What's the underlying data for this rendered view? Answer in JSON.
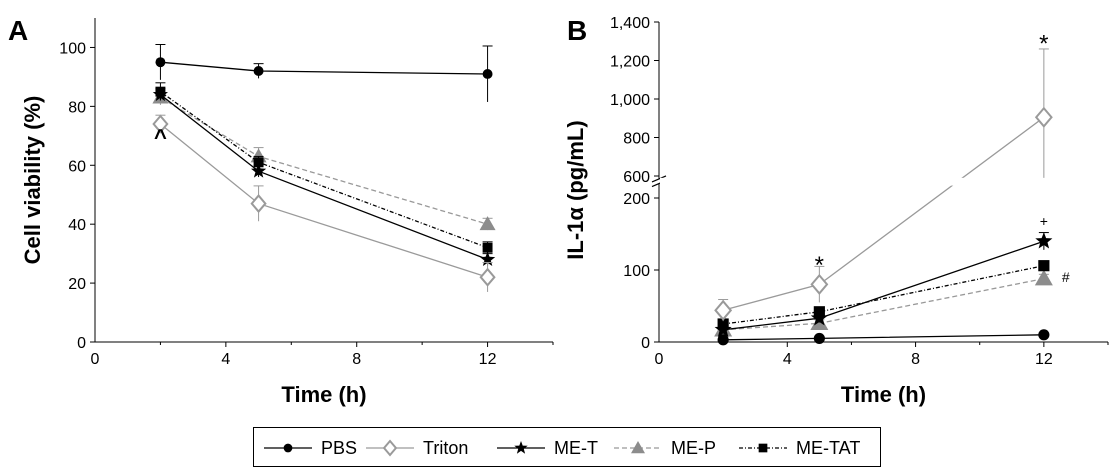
{
  "chart_data": [
    {
      "panel": "A",
      "type": "line",
      "xlabel": "Time (h)",
      "ylabel": "Cell viability (%)",
      "xlim": [
        0,
        14
      ],
      "ylim": [
        0,
        100
      ],
      "xticks": [
        "0",
        "4",
        "8",
        "12"
      ],
      "yticks": [
        "0",
        "20",
        "40",
        "60",
        "80",
        "100"
      ],
      "x": [
        2,
        5,
        12
      ],
      "series": [
        {
          "name": "PBS",
          "values": [
            95,
            92,
            91
          ],
          "errors": [
            6,
            2.5,
            9.5
          ]
        },
        {
          "name": "Triton",
          "values": [
            74,
            47,
            22
          ],
          "errors": [
            3,
            6,
            5
          ]
        },
        {
          "name": "ME-T",
          "values": [
            84,
            58,
            28
          ],
          "errors": [
            2,
            2,
            2
          ]
        },
        {
          "name": "ME-P",
          "values": [
            83,
            63,
            40
          ],
          "errors": [
            2.5,
            3,
            2
          ]
        },
        {
          "name": "ME-TAT",
          "values": [
            85,
            61,
            32
          ],
          "errors": [
            3,
            2,
            2
          ]
        }
      ],
      "annotations": [
        {
          "text": "^",
          "x": 2,
          "y": 67
        }
      ]
    },
    {
      "panel": "B",
      "type": "line",
      "xlabel": "Time (h)",
      "ylabel": "IL-1α (pg/mL)",
      "xlim": [
        0,
        14
      ],
      "ylim_lower": [
        0,
        220
      ],
      "ylim_upper": [
        580,
        1400
      ],
      "xticks": [
        "0",
        "4",
        "8",
        "12"
      ],
      "yticks_lower": [
        "0",
        "100",
        "200"
      ],
      "yticks_upper": [
        "600",
        "800",
        "1,000",
        "1,200",
        "1,400"
      ],
      "x": [
        2,
        5,
        12
      ],
      "series": [
        {
          "name": "PBS",
          "values": [
            3,
            5,
            10
          ],
          "errors": [
            0,
            0,
            0
          ]
        },
        {
          "name": "Triton",
          "values": [
            44,
            80,
            905
          ],
          "errors": [
            15,
            25,
            355
          ]
        },
        {
          "name": "ME-T",
          "values": [
            17,
            33,
            140
          ],
          "errors": [
            4,
            6,
            12
          ]
        },
        {
          "name": "ME-P",
          "values": [
            17,
            26,
            88
          ],
          "errors": [
            4,
            5,
            6
          ]
        },
        {
          "name": "ME-TAT",
          "values": [
            25,
            42,
            106
          ],
          "errors": [
            4,
            5,
            6
          ]
        }
      ],
      "annotations": [
        {
          "text": "*",
          "x": 5,
          "y": 115
        },
        {
          "text": "*",
          "x": 12,
          "y": 1320
        },
        {
          "text": "+",
          "x": 12,
          "y": 168
        },
        {
          "text": "#",
          "x": 12,
          "y": 90
        }
      ]
    }
  ],
  "panels": {
    "a_letter": "A",
    "b_letter": "B"
  },
  "legend": {
    "items": [
      "PBS",
      "Triton",
      "ME-T",
      "ME-P",
      "ME-TAT"
    ]
  }
}
